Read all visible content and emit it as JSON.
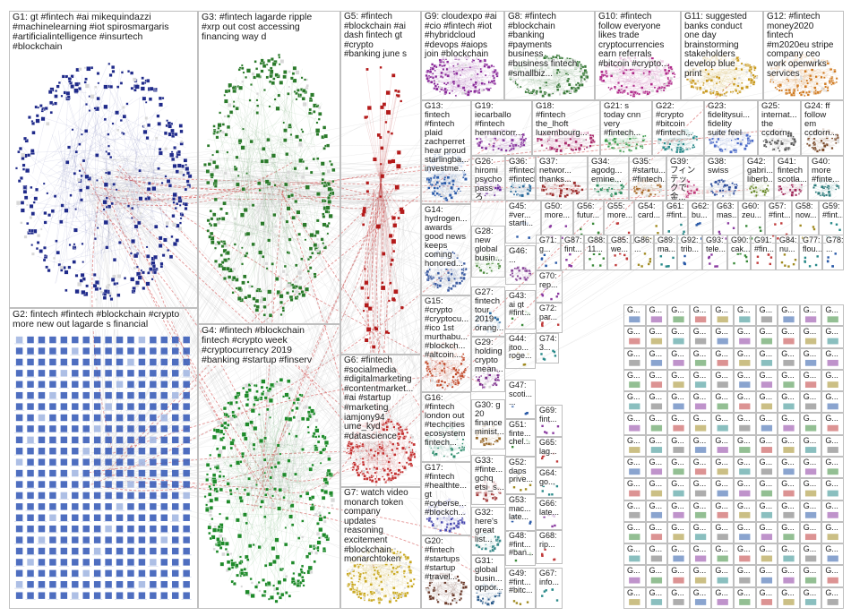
{
  "groups": [
    {
      "id": "G1",
      "label": "G1: gt #fintech #ai mikequindazzi\n#machinelearning #iot spirosmargaris\n#artificialintelligence #insurtech\n#blockchain",
      "color": "#1f2a8a",
      "layout": "circle"
    },
    {
      "id": "G2",
      "label": "G2: fintech #fintech #blockchain #crypto\nmore new out lagarde s financial",
      "color": "#2f55b5",
      "layout": "grid"
    },
    {
      "id": "G3",
      "label": "G3: #fintech lagarde ripple\n#xrp out cost accessing\nfinancing way d",
      "color": "#2a7a2a",
      "layout": "circle"
    },
    {
      "id": "G4",
      "label": "G4: #fintech #blockchain\nfintech #crypto week\n#cryptocurrency 2019\n#banking #startup #finserv",
      "color": "#1e8a2a",
      "layout": "circle"
    },
    {
      "id": "G5",
      "label": "G5: #fintech\n#blockchain #ai\ndash fintech gt\n#crypto\n#banking june s",
      "color": "#b31a1a",
      "layout": "column"
    },
    {
      "id": "G6",
      "label": "G6: #fintech\n#socialmedia\n#digitalmarketing\n#contentmarket...\n#ai #startup\n#marketing\niamjony94\nume_kyd\n#datascience",
      "color": "#c33030",
      "layout": "circle"
    },
    {
      "id": "G7",
      "label": "G7: watch video\nmonarch token\ncompany\nupdates\nreasoning\nexcitement\n#blockchain\nmonarchtoken",
      "color": "#c9a820",
      "layout": "circle"
    },
    {
      "id": "G8",
      "label": "G8: #fintech\n#blockchain\n#banking\n#payments\nbusiness\n#business fintech\n#smallbiz...",
      "color": "#3a7a3a",
      "layout": "circle"
    },
    {
      "id": "G9",
      "label": "G9: cloudexpo #ai\n#cio #fintech #iot\n#hybridcloud\n#devops #aiops\njoin #blockchain",
      "color": "#8a2a9a",
      "layout": "circle"
    },
    {
      "id": "G10",
      "label": "G10: #fintech\nfollow everyone\nlikes trade\ncryptocurrencies\nearn referrals\n#bitcoin #crypto...",
      "color": "#b02a8a",
      "layout": "circle"
    },
    {
      "id": "G11",
      "label": "G11: suggested\nbanks conduct\none day\nbrainstorming\nstakeholders\ndevelop blue\nprint",
      "color": "#c99a20",
      "layout": "circle"
    },
    {
      "id": "G12",
      "label": "G12: #fintech\nmoney2020\nfintech\n#m2020eu stripe\ncompany ceo\nwork openwrks\nservices",
      "color": "#d07a20",
      "layout": "circle"
    },
    {
      "id": "G13",
      "label": "G13:\nfintech\n#fintech\nplaid\nzachperret\nhear proud\nstarlingba...\ninvestme...",
      "color": "#2a5aa8",
      "layout": "circle"
    },
    {
      "id": "G19",
      "label": "G19:\niecarballo\n#fintech\nhernancorr...",
      "color": "#8a3aa0",
      "layout": "circle"
    },
    {
      "id": "G18",
      "label": "G18:\n#fintech\nthe_lhoft\nluxembourg...",
      "color": "#a82a6a",
      "layout": "circle"
    },
    {
      "id": "G21",
      "label": "G21: s\ntoday cnn\nvery\n#fintech...",
      "color": "#3a9a4a",
      "layout": "circle"
    },
    {
      "id": "G22",
      "label": "G22:\n#crypto\n#bitcoin\n#fintech...",
      "color": "#2a8a8a",
      "layout": "circle"
    },
    {
      "id": "G23",
      "label": "G23:\nfidelitysui...\nfidelity\nsuite feel",
      "color": "#4a6ac8",
      "layout": "circle"
    },
    {
      "id": "G25",
      "label": "G25:\ninternat...\nthe\nccdorn",
      "color": "#5a5a5a",
      "layout": "circle"
    },
    {
      "id": "G24",
      "label": "G24: ff\nfollow\nem\nccdorn...",
      "color": "#7a4a2a",
      "layout": "circle"
    },
    {
      "id": "G26",
      "label": "G26:\nhiromi\npsycho\npass ろ\nくでも...",
      "color": "#6a2aa0",
      "layout": "circle"
    },
    {
      "id": "G36",
      "label": "G36:\n#fintech\n#fintech...",
      "color": "#2a6a9a",
      "layout": "circle"
    },
    {
      "id": "G37",
      "label": "G37:\nnetwor...\nthanks...",
      "color": "#9a2a2a",
      "layout": "circle"
    },
    {
      "id": "G34",
      "label": "G34:\nagodg...\nemine...",
      "color": "#2a8a5a",
      "layout": "circle"
    },
    {
      "id": "G35",
      "label": "G35:\n#startu...\n#fintech...",
      "color": "#a86a2a",
      "layout": "circle"
    },
    {
      "id": "G39",
      "label": "G39:\nフィンテッ\nクで 金...",
      "color": "#c03a7a",
      "layout": "circle"
    },
    {
      "id": "G38",
      "label": "G38:\nswiss",
      "color": "#2a4a9a",
      "layout": "circle"
    },
    {
      "id": "G42",
      "label": "G42:\ngabri...\nliberb...",
      "color": "#6a8a2a",
      "layout": "circle"
    },
    {
      "id": "G41",
      "label": "G41:\nfintech\nscotla...",
      "color": "#a02a5a",
      "layout": "circle"
    },
    {
      "id": "G40",
      "label": "G40:\nmore\n#finte...",
      "color": "#2a7a7a",
      "layout": "circle"
    },
    {
      "id": "G14",
      "label": "G14:\nhydrogen...\nawards\ngood news\nkeeps\ncoming\nhonored...",
      "color": "#3a5aa0",
      "layout": "circle"
    },
    {
      "id": "G28",
      "label": "G28:\nnew\nglobal\nbusin...",
      "color": "#4a8a3a",
      "layout": "circle"
    },
    {
      "id": "G46",
      "label": "G46:\n...",
      "color": "#8a4a9a",
      "layout": "circle"
    },
    {
      "id": "G15",
      "label": "G15:\n#crypto\n#cryptocu...\n#ico 1st\nmurthabu...\n#blockch...\n#altcoin...",
      "color": "#c04a2a",
      "layout": "circle"
    },
    {
      "id": "G27",
      "label": "G27:\nfintech\ntour\n2019\norang...",
      "color": "#2a6aa0",
      "layout": "circle"
    },
    {
      "id": "G29",
      "label": "G29:\nholding\ncrypto\nmean...",
      "color": "#7a2a8a",
      "layout": "circle"
    },
    {
      "id": "G16",
      "label": "G16:\n#fintech\nlondon out\n#techcities\necosystem\nfintech...",
      "color": "#2a8a6a",
      "layout": "circle"
    },
    {
      "id": "G30",
      "label": "G30: g\n20\nfinance\nminist...",
      "color": "#9a6a2a",
      "layout": "circle"
    },
    {
      "id": "G17",
      "label": "G17:\n#fintech\n#healthte...\ngt\n#cyberse...\n#blockch...",
      "color": "#4a4ab0",
      "layout": "circle"
    },
    {
      "id": "G33",
      "label": "G33:\n#finte...\ngchq\netsi_s...",
      "color": "#a03a3a",
      "layout": "circle"
    },
    {
      "id": "G32",
      "label": "G32:\nhere's\ngreat\nlist...",
      "color": "#3a8a8a",
      "layout": "circle"
    },
    {
      "id": "G20",
      "label": "G20:\n#fintech\n#startups\n#startup\n#travel...",
      "color": "#6a3a2a",
      "layout": "circle"
    },
    {
      "id": "G31",
      "label": "G31:\nglobal\nbusin...\noppor...",
      "color": "#2a5a8a",
      "layout": "circle"
    }
  ],
  "small_group_ids": [
    "G45",
    "G50",
    "G56",
    "G55",
    "G54",
    "G61",
    "G62",
    "G63",
    "G60",
    "G57",
    "G58",
    "G59",
    "G71",
    "G87",
    "G88",
    "G85",
    "G86",
    "G89",
    "G92",
    "G93",
    "G90",
    "G91",
    "G84",
    "G77",
    "G78",
    "G70",
    "G43",
    "G72",
    "G44",
    "G74",
    "G47",
    "G69",
    "G51",
    "G65",
    "G52",
    "G64",
    "G53",
    "G66",
    "G48",
    "G68",
    "G49",
    "G67",
    "G1...",
    "G9...",
    "G7..."
  ],
  "small_group_labels": [
    "G45:\n#ver...\nstarti...",
    "G50:\nmore...",
    "G56:\nfutur...",
    "G55:\nmore...",
    "G54:\ncard...",
    "G61:\n#fint...",
    "G62:\nbu...",
    "G63:\nmas...",
    "G60:\nzeu...",
    "G57:\n#fint...",
    "G58:\nnow...",
    "G59:\n#fint...",
    "G71:\ng...",
    "G87:\nfint...",
    "G88:\n11...",
    "G85:\nwe...",
    "G86:\n...",
    "G89:\nma...",
    "G92:\ntrib...",
    "G93:\ntele...",
    "G90:\ncak...",
    "G91:\n#fin...",
    "G84:\nnu...",
    "G77:\nflou...",
    "G78:\n...",
    "G70:\nrep...",
    "G43:\nai gt\n#fint...",
    "G72:\npar...",
    "G44:\njtoo...\nroge...",
    "G74:\n3...",
    "G47:\nscoti...\n...",
    "G69:\nfint...",
    "G51:\nfinte...\nchel...",
    "G65:\nlag...",
    "G52:\ndaps\nprive...",
    "G64:\ngo...",
    "G53:\nmac...\nlate...",
    "G66:\nlate...",
    "G48:\n#fint...\n#ban...",
    "G68:\nrip...",
    "G49:\n#fint...\n#bitc...",
    "G67:\ninfo..."
  ],
  "grid_label": "G...",
  "edge_color": "#c8c8c8",
  "highlight_edge_color": "#d04040"
}
